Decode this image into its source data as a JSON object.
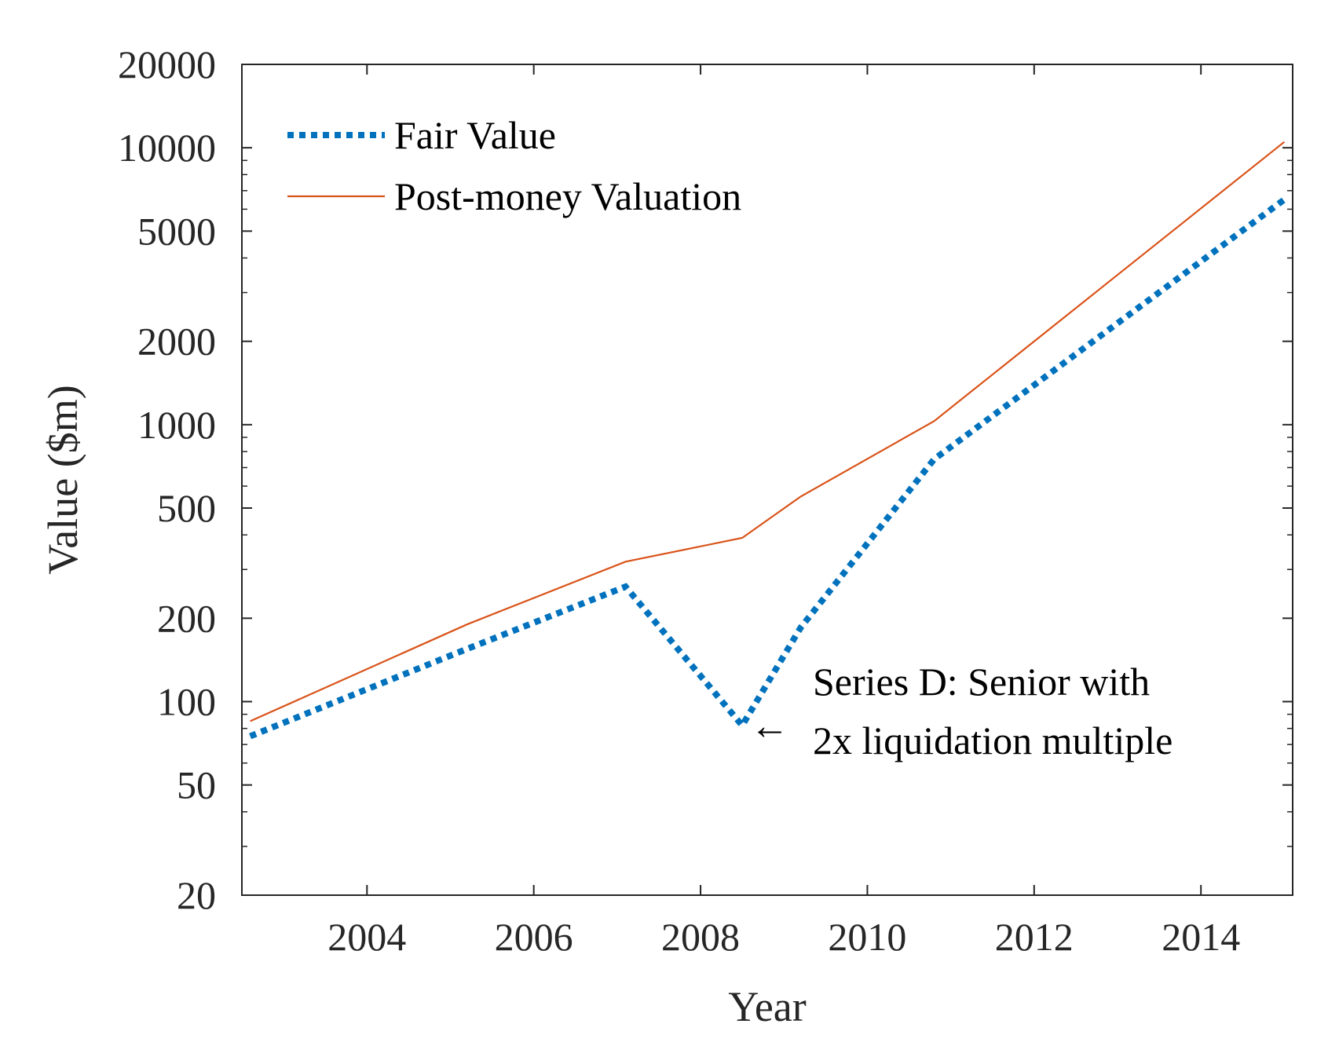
{
  "chart_data": {
    "type": "line",
    "title": "",
    "xlabel": "Year",
    "ylabel": "Value ($m)",
    "xlim": [
      2002.5,
      2015.1
    ],
    "ylim": [
      20,
      20000
    ],
    "yscale": "log",
    "xticks": [
      2004,
      2006,
      2008,
      2010,
      2012,
      2014
    ],
    "xtick_labels": [
      "2004",
      "2006",
      "2008",
      "2010",
      "2012",
      "2014"
    ],
    "yticks": [
      20,
      50,
      100,
      200,
      500,
      1000,
      2000,
      5000,
      10000,
      20000
    ],
    "ytick_labels": [
      "20",
      "50",
      "100",
      "200",
      "500",
      "1000",
      "2000",
      "5000",
      "10000",
      "20000"
    ],
    "grid": false,
    "legend_position": "top-left",
    "series": [
      {
        "name": "Fair Value",
        "color": "#0072BD",
        "style": "dotted",
        "x": [
          2002.6,
          2005.2,
          2007.1,
          2008.5,
          2009.2,
          2010.8,
          2015.0
        ],
        "y": [
          75,
          155,
          260,
          82,
          185,
          750,
          6500
        ]
      },
      {
        "name": "Post-money Valuation",
        "color": "#D95319",
        "style": "solid",
        "x": [
          2002.6,
          2005.2,
          2007.1,
          2008.5,
          2009.2,
          2010.8,
          2015.0
        ],
        "y": [
          85,
          190,
          320,
          390,
          550,
          1030,
          10500
        ]
      }
    ],
    "annotation": {
      "arrow": "←",
      "lines": [
        "Series D: Senior with",
        "2x liquidation multiple"
      ],
      "x": 2008.5,
      "y": 82
    }
  }
}
